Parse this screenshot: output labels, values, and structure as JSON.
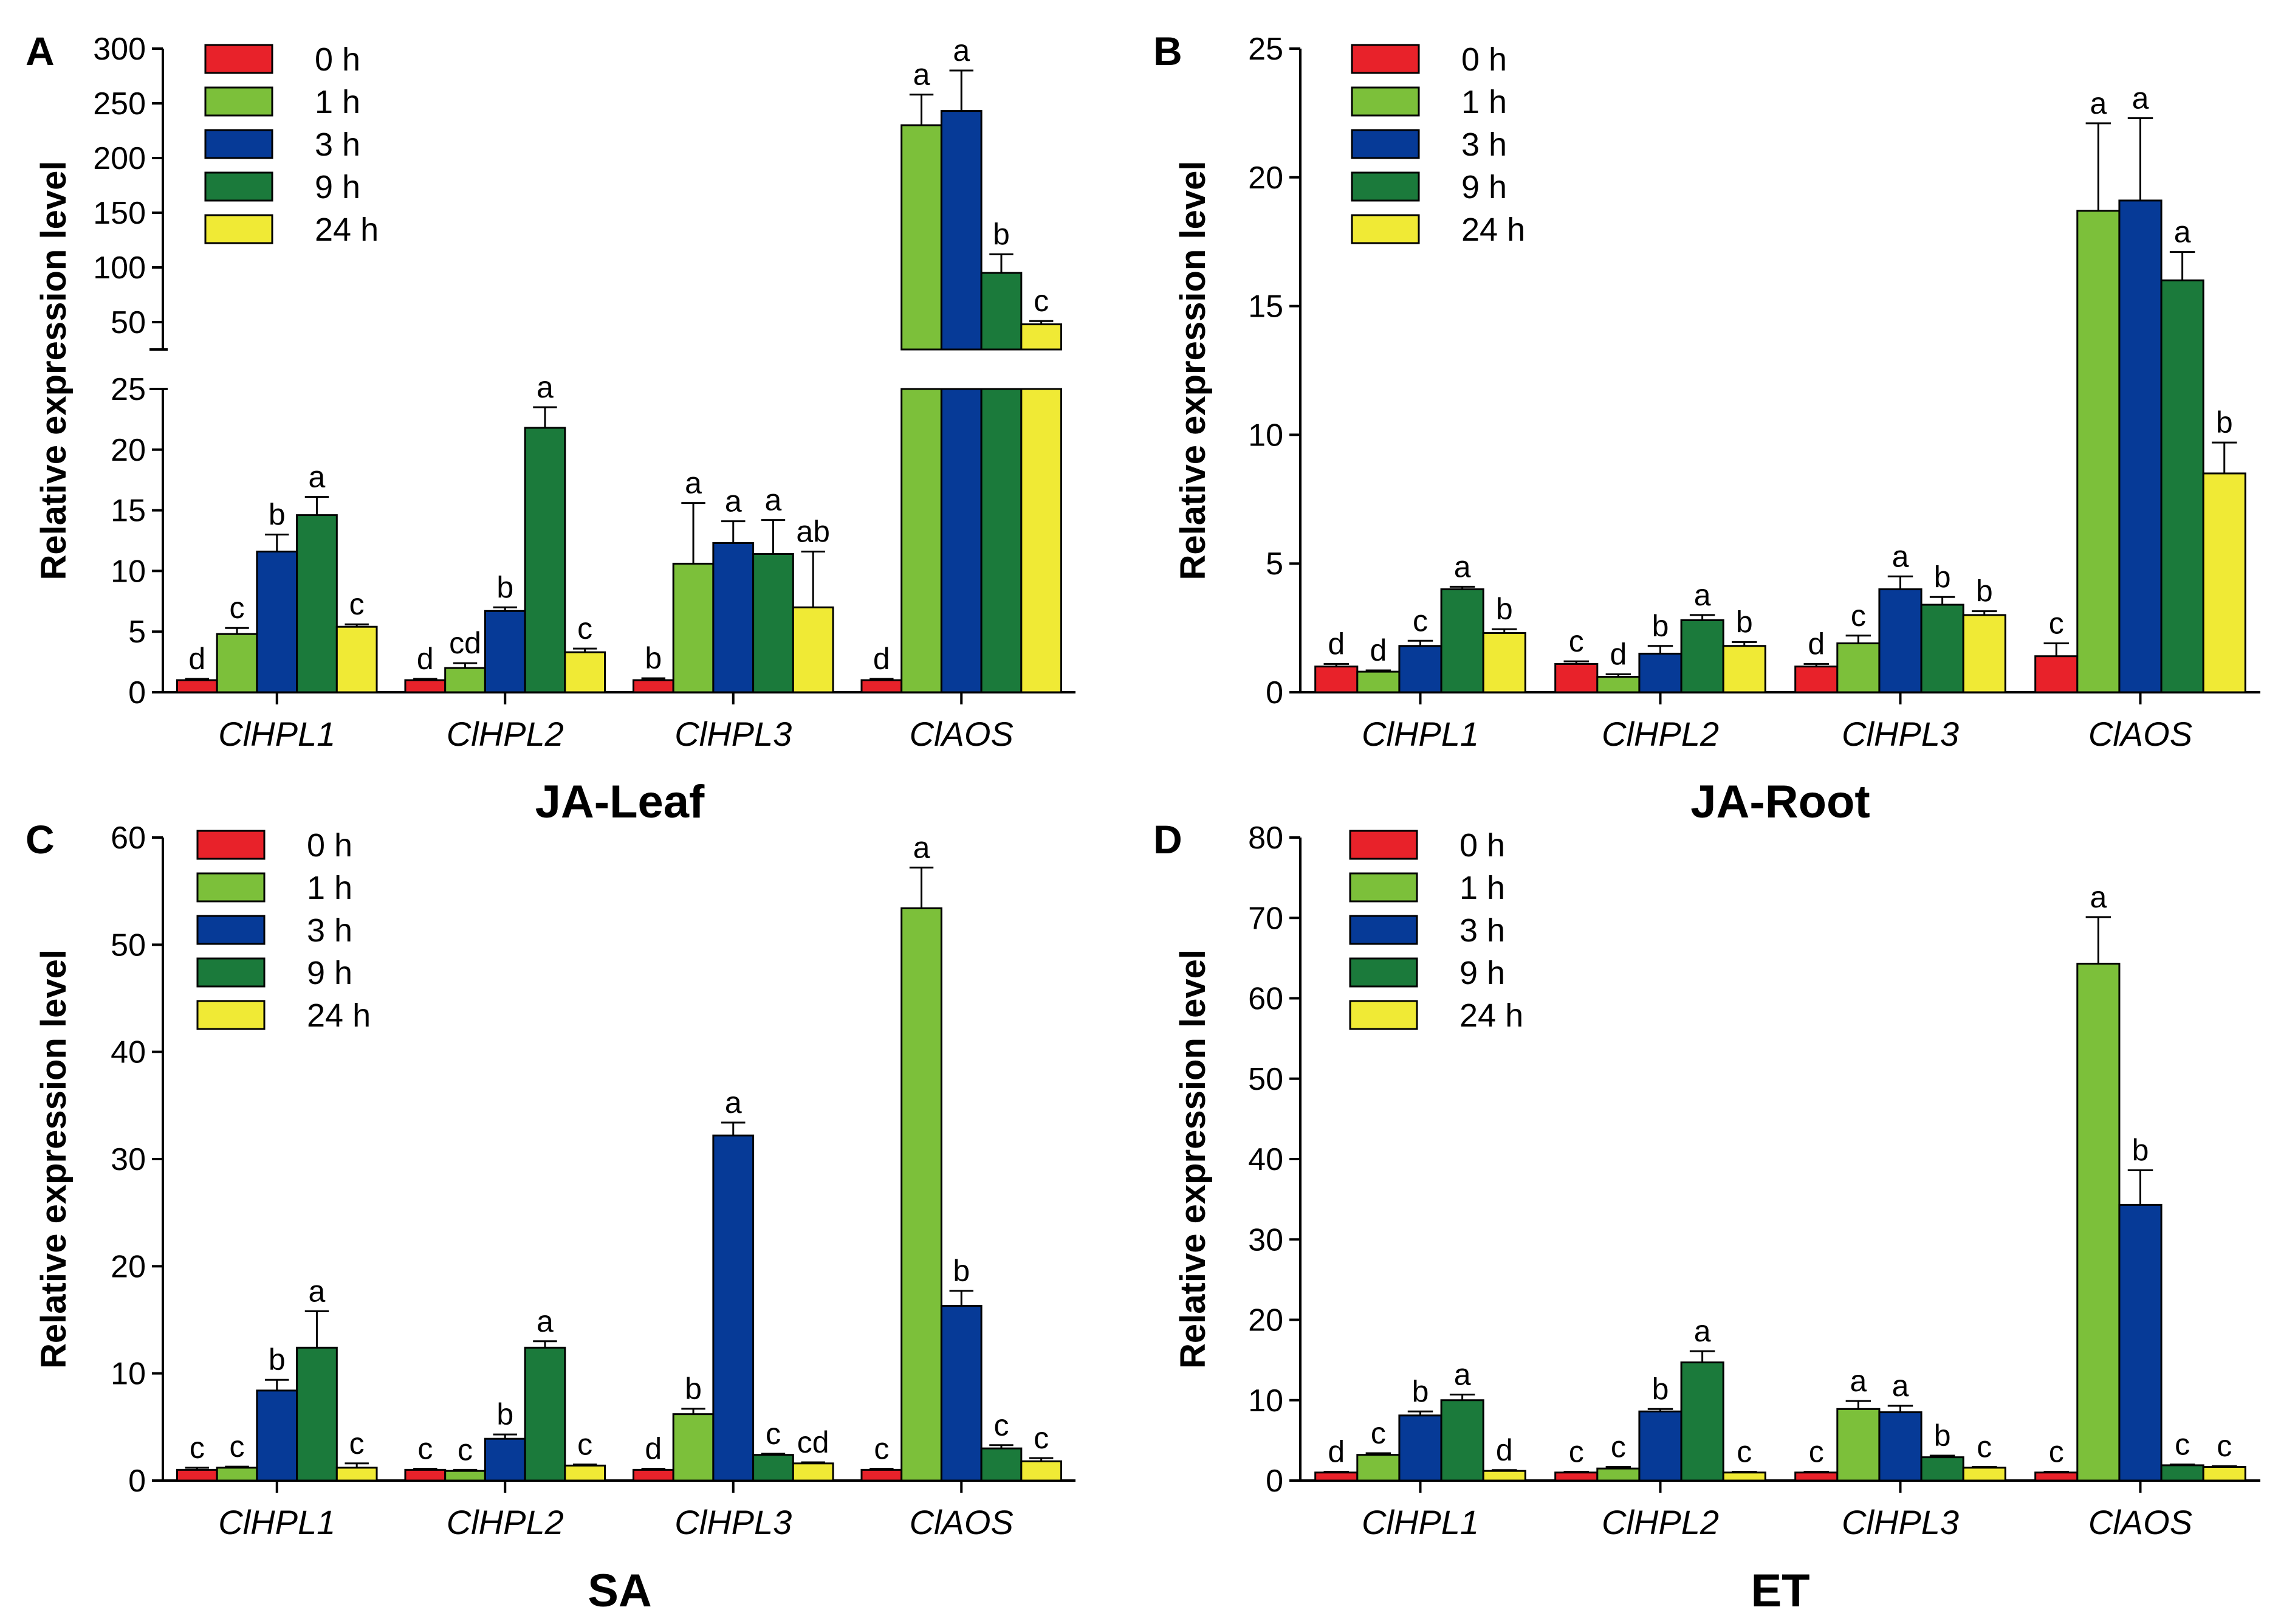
{
  "colors": {
    "0 h": "#e8222a",
    "1 h": "#7cc03a",
    "3 h": "#063a97",
    "9 h": "#1b7a3b",
    "24 h": "#f0ea35"
  },
  "chart_data": [
    {
      "type": "bar",
      "panel_label": "A",
      "title": "JA-Leaf",
      "ylabel": "Relative expression level",
      "categories": [
        "ClHPL1",
        "ClHPL2",
        "ClHPL3",
        "ClAOS"
      ],
      "legend": [
        "0 h",
        "1 h",
        "3 h",
        "9 h",
        "24 h"
      ],
      "axis_break": {
        "lower_ylim": [
          0,
          25
        ],
        "upper_ylim": [
          25,
          300
        ]
      },
      "ylim": [
        0,
        300
      ],
      "yticks": [
        0,
        5,
        10,
        15,
        20,
        25,
        50,
        100,
        150,
        200,
        250,
        300
      ],
      "series": [
        {
          "name": "0 h",
          "values": [
            1,
            1,
            1,
            1
          ],
          "errors": [
            0.1,
            0.1,
            0.15,
            0.1
          ],
          "letters": [
            "d",
            "d",
            "b",
            "d"
          ]
        },
        {
          "name": "1 h",
          "values": [
            4.8,
            2,
            10.6,
            230
          ],
          "errors": [
            0.5,
            0.4,
            5,
            28
          ],
          "letters": [
            "c",
            "cd",
            "a",
            "a"
          ]
        },
        {
          "name": "3 h",
          "values": [
            11.6,
            6.7,
            12.3,
            243
          ],
          "errors": [
            1.4,
            0.3,
            1.8,
            37
          ],
          "letters": [
            "b",
            "b",
            "a",
            "a"
          ]
        },
        {
          "name": "9 h",
          "values": [
            14.6,
            21.8,
            11.4,
            95
          ],
          "errors": [
            1.5,
            1.7,
            2.8,
            17
          ],
          "letters": [
            "a",
            "a",
            "a",
            "b"
          ]
        },
        {
          "name": "24 h",
          "values": [
            5.4,
            3.3,
            7,
            48
          ],
          "errors": [
            0.2,
            0.3,
            4.6,
            3
          ],
          "letters": [
            "c",
            "c",
            "ab",
            "c"
          ]
        }
      ]
    },
    {
      "type": "bar",
      "panel_label": "B",
      "title": "JA-Root",
      "ylabel": "Relative expression level",
      "categories": [
        "ClHPL1",
        "ClHPL2",
        "ClHPL3",
        "ClAOS"
      ],
      "legend": [
        "0 h",
        "1 h",
        "3 h",
        "9 h",
        "24 h"
      ],
      "ylim": [
        0,
        25
      ],
      "yticks": [
        0,
        5,
        10,
        15,
        20,
        25
      ],
      "series": [
        {
          "name": "0 h",
          "values": [
            1,
            1.1,
            1,
            1.4
          ],
          "errors": [
            0.1,
            0.1,
            0.1,
            0.5
          ],
          "letters": [
            "d",
            "c",
            "d",
            "c"
          ]
        },
        {
          "name": "1 h",
          "values": [
            0.8,
            0.6,
            1.9,
            18.7
          ],
          "errors": [
            0.05,
            0.1,
            0.3,
            3.4
          ],
          "letters": [
            "d",
            "d",
            "c",
            "a"
          ]
        },
        {
          "name": "3 h",
          "values": [
            1.8,
            1.5,
            4,
            19.1
          ],
          "errors": [
            0.2,
            0.3,
            0.5,
            3.2
          ],
          "letters": [
            "c",
            "b",
            "a",
            "a"
          ]
        },
        {
          "name": "9 h",
          "values": [
            4,
            2.8,
            3.4,
            16
          ],
          "errors": [
            0.1,
            0.2,
            0.3,
            1.1
          ],
          "letters": [
            "a",
            "a",
            "b",
            "a"
          ]
        },
        {
          "name": "24 h",
          "values": [
            2.3,
            1.8,
            3,
            8.5
          ],
          "errors": [
            0.15,
            0.15,
            0.15,
            1.2
          ],
          "letters": [
            "b",
            "b",
            "b",
            "b"
          ]
        }
      ]
    },
    {
      "type": "bar",
      "panel_label": "C",
      "title": "SA",
      "ylabel": "Relative expression level",
      "categories": [
        "ClHPL1",
        "ClHPL2",
        "ClHPL3",
        "ClAOS"
      ],
      "legend": [
        "0 h",
        "1 h",
        "3 h",
        "9 h",
        "24 h"
      ],
      "ylim": [
        0,
        60
      ],
      "yticks": [
        0,
        10,
        20,
        30,
        40,
        50,
        60
      ],
      "series": [
        {
          "name": "0 h",
          "values": [
            1,
            1,
            1,
            1
          ],
          "errors": [
            0.2,
            0.1,
            0.1,
            0.1
          ],
          "letters": [
            "c",
            "c",
            "d",
            "c"
          ]
        },
        {
          "name": "1 h",
          "values": [
            1.2,
            0.9,
            6.2,
            53.4
          ],
          "errors": [
            0.1,
            0.1,
            0.5,
            3.8
          ],
          "letters": [
            "c",
            "c",
            "b",
            "a"
          ]
        },
        {
          "name": "3 h",
          "values": [
            8.4,
            3.9,
            32.2,
            16.3
          ],
          "errors": [
            1,
            0.4,
            1.2,
            1.4
          ],
          "letters": [
            "b",
            "b",
            "a",
            "b"
          ]
        },
        {
          "name": "9 h",
          "values": [
            12.4,
            12.4,
            2.4,
            3
          ],
          "errors": [
            3.4,
            0.6,
            0.1,
            0.3
          ],
          "letters": [
            "a",
            "a",
            "c",
            "c"
          ]
        },
        {
          "name": "24 h",
          "values": [
            1.2,
            1.4,
            1.6,
            1.8
          ],
          "errors": [
            0.4,
            0.1,
            0.1,
            0.3
          ],
          "letters": [
            "c",
            "c",
            "cd",
            "c"
          ]
        }
      ]
    },
    {
      "type": "bar",
      "panel_label": "D",
      "title": "ET",
      "ylabel": "Relative expression level",
      "categories": [
        "ClHPL1",
        "ClHPL2",
        "ClHPL3",
        "ClAOS"
      ],
      "legend": [
        "0 h",
        "1 h",
        "3 h",
        "9 h",
        "24 h"
      ],
      "ylim": [
        0,
        80
      ],
      "yticks": [
        0,
        10,
        20,
        30,
        40,
        50,
        60,
        70,
        80
      ],
      "series": [
        {
          "name": "0 h",
          "values": [
            1,
            1,
            1,
            1
          ],
          "errors": [
            0.1,
            0.1,
            0.1,
            0.1
          ],
          "letters": [
            "d",
            "c",
            "c",
            "c"
          ]
        },
        {
          "name": "1 h",
          "values": [
            3.2,
            1.5,
            8.9,
            64.3
          ],
          "errors": [
            0.2,
            0.2,
            1,
            5.8
          ],
          "letters": [
            "c",
            "c",
            "a",
            "a"
          ]
        },
        {
          "name": "3 h",
          "values": [
            8.1,
            8.6,
            8.5,
            34.3
          ],
          "errors": [
            0.5,
            0.3,
            0.8,
            4.3
          ],
          "letters": [
            "b",
            "b",
            "a",
            "b"
          ]
        },
        {
          "name": "9 h",
          "values": [
            10,
            14.7,
            2.9,
            1.9
          ],
          "errors": [
            0.7,
            1.4,
            0.2,
            0.1
          ],
          "letters": [
            "a",
            "a",
            "b",
            "c"
          ]
        },
        {
          "name": "24 h",
          "values": [
            1.2,
            1,
            1.6,
            1.7
          ],
          "errors": [
            0.1,
            0.1,
            0.1,
            0.1
          ],
          "letters": [
            "d",
            "c",
            "c",
            "c"
          ]
        }
      ]
    }
  ]
}
